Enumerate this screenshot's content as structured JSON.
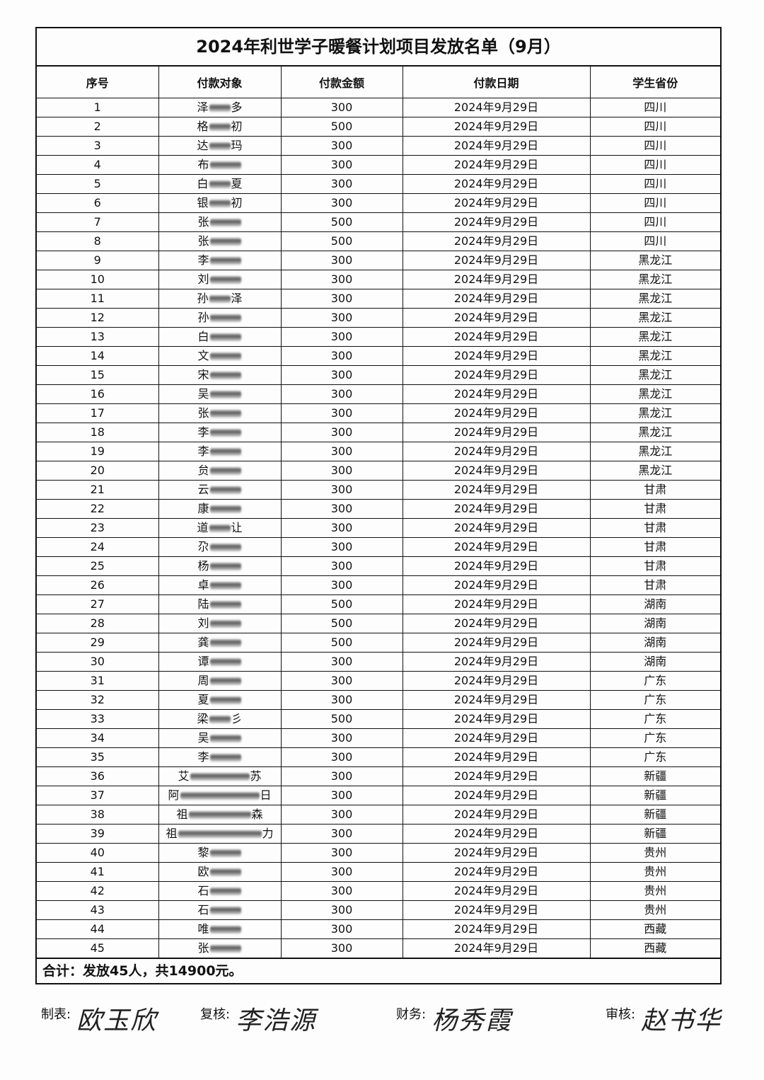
{
  "title": "2024年利世学子暖餐计划项目发放名单（9月）",
  "columns": [
    "序号",
    "付款对象",
    "付款金额",
    "付款日期",
    "学生省份"
  ],
  "rows": [
    {
      "no": "1",
      "first": "泽",
      "last": "多",
      "amount": "300",
      "date": "2024年9月29日",
      "province": "四川"
    },
    {
      "no": "2",
      "first": "格",
      "last": "初",
      "amount": "500",
      "date": "2024年9月29日",
      "province": "四川"
    },
    {
      "no": "3",
      "first": "达",
      "last": "玛",
      "amount": "300",
      "date": "2024年9月29日",
      "province": "四川"
    },
    {
      "no": "4",
      "first": "布",
      "last": "",
      "amount": "300",
      "date": "2024年9月29日",
      "province": "四川"
    },
    {
      "no": "5",
      "first": "白",
      "last": "夏",
      "amount": "300",
      "date": "2024年9月29日",
      "province": "四川"
    },
    {
      "no": "6",
      "first": "银",
      "last": "初",
      "amount": "300",
      "date": "2024年9月29日",
      "province": "四川"
    },
    {
      "no": "7",
      "first": "张",
      "last": "",
      "amount": "500",
      "date": "2024年9月29日",
      "province": "四川"
    },
    {
      "no": "8",
      "first": "张",
      "last": "",
      "amount": "500",
      "date": "2024年9月29日",
      "province": "四川"
    },
    {
      "no": "9",
      "first": "李",
      "last": "",
      "amount": "300",
      "date": "2024年9月29日",
      "province": "黑龙江"
    },
    {
      "no": "10",
      "first": "刘",
      "last": "",
      "amount": "300",
      "date": "2024年9月29日",
      "province": "黑龙江"
    },
    {
      "no": "11",
      "first": "孙",
      "last": "泽",
      "amount": "300",
      "date": "2024年9月29日",
      "province": "黑龙江"
    },
    {
      "no": "12",
      "first": "孙",
      "last": "",
      "amount": "300",
      "date": "2024年9月29日",
      "province": "黑龙江"
    },
    {
      "no": "13",
      "first": "白",
      "last": "",
      "amount": "300",
      "date": "2024年9月29日",
      "province": "黑龙江"
    },
    {
      "no": "14",
      "first": "文",
      "last": "",
      "amount": "300",
      "date": "2024年9月29日",
      "province": "黑龙江"
    },
    {
      "no": "15",
      "first": "宋",
      "last": "",
      "amount": "300",
      "date": "2024年9月29日",
      "province": "黑龙江"
    },
    {
      "no": "16",
      "first": "吴",
      "last": "",
      "amount": "300",
      "date": "2024年9月29日",
      "province": "黑龙江"
    },
    {
      "no": "17",
      "first": "张",
      "last": "",
      "amount": "300",
      "date": "2024年9月29日",
      "province": "黑龙江"
    },
    {
      "no": "18",
      "first": "李",
      "last": "",
      "amount": "300",
      "date": "2024年9月29日",
      "province": "黑龙江"
    },
    {
      "no": "19",
      "first": "李",
      "last": "",
      "amount": "300",
      "date": "2024年9月29日",
      "province": "黑龙江"
    },
    {
      "no": "20",
      "first": "贠",
      "last": "",
      "amount": "300",
      "date": "2024年9月29日",
      "province": "黑龙江"
    },
    {
      "no": "21",
      "first": "云",
      "last": "",
      "amount": "300",
      "date": "2024年9月29日",
      "province": "甘肃"
    },
    {
      "no": "22",
      "first": "康",
      "last": "",
      "amount": "300",
      "date": "2024年9月29日",
      "province": "甘肃"
    },
    {
      "no": "23",
      "first": "道",
      "last": "让",
      "amount": "300",
      "date": "2024年9月29日",
      "province": "甘肃"
    },
    {
      "no": "24",
      "first": "尕",
      "last": "",
      "amount": "300",
      "date": "2024年9月29日",
      "province": "甘肃"
    },
    {
      "no": "25",
      "first": "杨",
      "last": "",
      "amount": "300",
      "date": "2024年9月29日",
      "province": "甘肃"
    },
    {
      "no": "26",
      "first": "卓",
      "last": "",
      "amount": "300",
      "date": "2024年9月29日",
      "province": "甘肃"
    },
    {
      "no": "27",
      "first": "陆",
      "last": "",
      "amount": "500",
      "date": "2024年9月29日",
      "province": "湖南"
    },
    {
      "no": "28",
      "first": "刘",
      "last": "",
      "amount": "500",
      "date": "2024年9月29日",
      "province": "湖南"
    },
    {
      "no": "29",
      "first": "龚",
      "last": "",
      "amount": "500",
      "date": "2024年9月29日",
      "province": "湖南"
    },
    {
      "no": "30",
      "first": "谭",
      "last": "",
      "amount": "300",
      "date": "2024年9月29日",
      "province": "湖南"
    },
    {
      "no": "31",
      "first": "周",
      "last": "",
      "amount": "300",
      "date": "2024年9月29日",
      "province": "广东"
    },
    {
      "no": "32",
      "first": "夏",
      "last": "",
      "amount": "300",
      "date": "2024年9月29日",
      "province": "广东"
    },
    {
      "no": "33",
      "first": "梁",
      "last": "彡",
      "amount": "500",
      "date": "2024年9月29日",
      "province": "广东"
    },
    {
      "no": "34",
      "first": "吴",
      "last": "",
      "amount": "300",
      "date": "2024年9月29日",
      "province": "广东"
    },
    {
      "no": "35",
      "first": "李",
      "last": "",
      "amount": "300",
      "date": "2024年9月29日",
      "province": "广东"
    },
    {
      "no": "36",
      "first": "艾",
      "last": "苏",
      "amount": "300",
      "date": "2024年9月29日",
      "province": "新疆"
    },
    {
      "no": "37",
      "first": "阿",
      "last": "日",
      "amount": "300",
      "date": "2024年9月29日",
      "province": "新疆"
    },
    {
      "no": "38",
      "first": "祖",
      "last": "森",
      "amount": "300",
      "date": "2024年9月29日",
      "province": "新疆"
    },
    {
      "no": "39",
      "first": "祖",
      "last": "力",
      "amount": "300",
      "date": "2024年9月29日",
      "province": "新疆"
    },
    {
      "no": "40",
      "first": "黎",
      "last": "",
      "amount": "300",
      "date": "2024年9月29日",
      "province": "贵州"
    },
    {
      "no": "41",
      "first": "欧",
      "last": "",
      "amount": "300",
      "date": "2024年9月29日",
      "province": "贵州"
    },
    {
      "no": "42",
      "first": "石",
      "last": "",
      "amount": "300",
      "date": "2024年9月29日",
      "province": "贵州"
    },
    {
      "no": "43",
      "first": "石",
      "last": "",
      "amount": "300",
      "date": "2024年9月29日",
      "province": "贵州"
    },
    {
      "no": "44",
      "first": "唯",
      "last": "",
      "amount": "300",
      "date": "2024年9月29日",
      "province": "西藏"
    },
    {
      "no": "45",
      "first": "张",
      "last": "",
      "amount": "300",
      "date": "2024年9月29日",
      "province": "西藏"
    }
  ],
  "total": "合计：发放45人，共14900元。",
  "signatures": [
    {
      "label": "制表:",
      "name": "欧玉欣"
    },
    {
      "label": "复核:",
      "name": "李浩源"
    },
    {
      "label": "财务:",
      "name": "杨秀霞"
    },
    {
      "label": "审核:",
      "name": "赵书华"
    }
  ]
}
